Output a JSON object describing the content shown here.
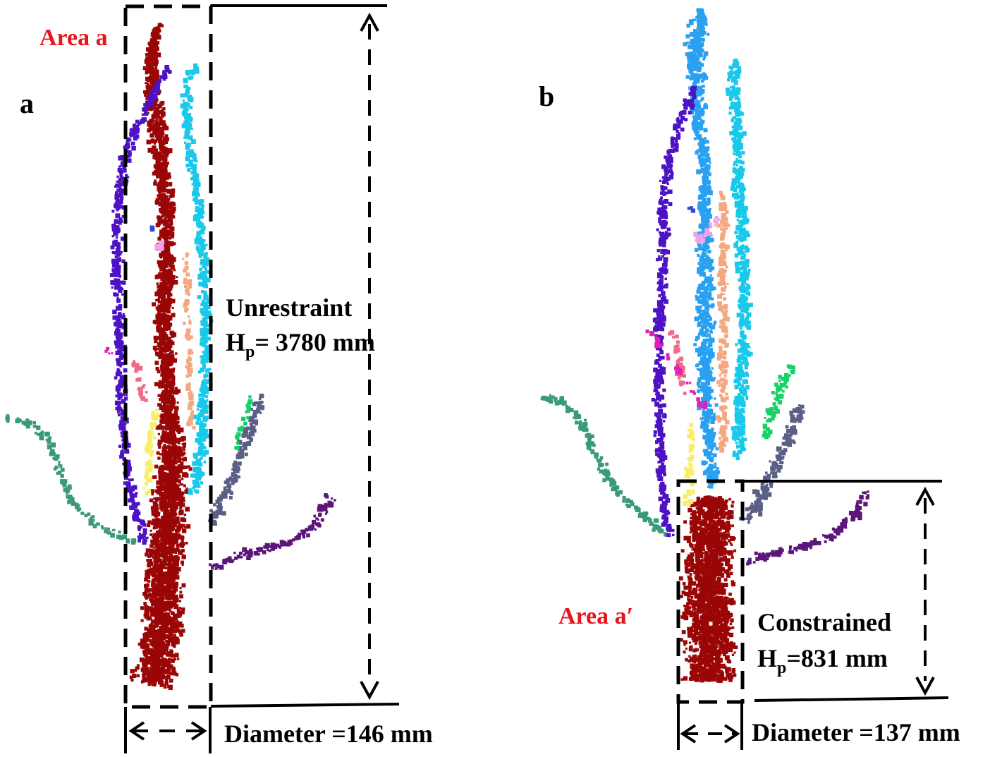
{
  "panels": [
    {
      "letter": "a",
      "area_label": "Area a",
      "state_label": "Unrestraint",
      "height_prefix": "H",
      "height_sub": "p",
      "height_value": "=  3780 mm",
      "diameter_label": "Diameter =146 mm"
    },
    {
      "letter": "b",
      "area_label": "Area a′",
      "state_label": "Constrained",
      "height_prefix": "H",
      "height_sub": "p",
      "height_value": "=831 mm",
      "diameter_label": "Diameter =137 mm"
    }
  ],
  "colors": {
    "trunk": "#9a0606",
    "violet": "#4c12c4",
    "cyan": "#19c9ea",
    "azure": "#2aa0f0",
    "salmon": "#f4a882",
    "teal": "#3a9a78",
    "slate": "#5a5f86",
    "purple": "#5a1679",
    "green": "#16d068",
    "yellow": "#f8ee6a",
    "magenta": "#e21fb8",
    "pink": "#f06a8a",
    "lilac": "#f2a0ea",
    "blue": "#3048d8",
    "label_red": "#e8141b",
    "line": "#000000"
  }
}
